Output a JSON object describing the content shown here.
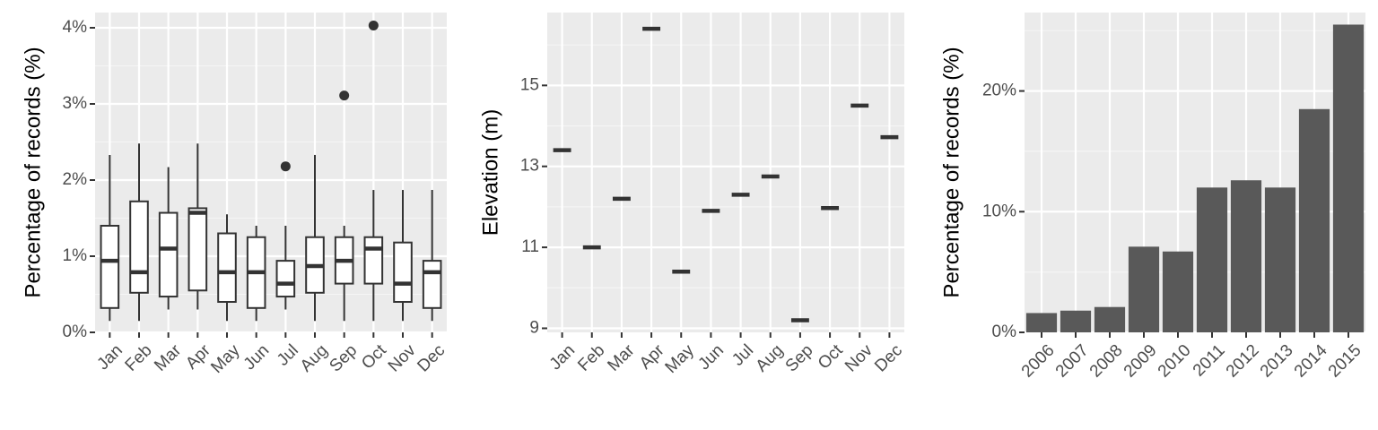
{
  "colors": {
    "panel_bg": "#ebebeb",
    "grid_major": "#ffffff",
    "grid_minor": "#f5f5f5",
    "ink": "#333333",
    "bar_fill": "#595959",
    "box_fill": "#ffffff"
  },
  "chart_data": [
    {
      "type": "box",
      "ylabel": "Percentage of records (%)",
      "xlabel": "",
      "ylim": [
        0,
        4.2
      ],
      "yticks": [
        0,
        1,
        2,
        3,
        4
      ],
      "ytick_labels": [
        "0%",
        "1%",
        "2%",
        "3%",
        "4%"
      ],
      "categories": [
        "Jan",
        "Feb",
        "Mar",
        "Apr",
        "May",
        "Jun",
        "Jul",
        "Aug",
        "Sep",
        "Oct",
        "Nov",
        "Dec"
      ],
      "boxes": [
        {
          "min": 0.15,
          "q1": 0.32,
          "median": 0.94,
          "q3": 1.4,
          "max": 2.33,
          "outliers": []
        },
        {
          "min": 0.15,
          "q1": 0.52,
          "median": 0.79,
          "q3": 1.72,
          "max": 2.48,
          "outliers": []
        },
        {
          "min": 0.3,
          "q1": 0.47,
          "median": 1.1,
          "q3": 1.57,
          "max": 2.17,
          "outliers": []
        },
        {
          "min": 0.3,
          "q1": 0.55,
          "median": 1.57,
          "q3": 1.63,
          "max": 2.48,
          "outliers": []
        },
        {
          "min": 0.15,
          "q1": 0.4,
          "median": 0.79,
          "q3": 1.3,
          "max": 1.55,
          "outliers": []
        },
        {
          "min": 0.15,
          "q1": 0.32,
          "median": 0.79,
          "q3": 1.25,
          "max": 1.4,
          "outliers": []
        },
        {
          "min": 0.3,
          "q1": 0.47,
          "median": 0.64,
          "q3": 0.94,
          "max": 1.4,
          "outliers": [
            2.18
          ]
        },
        {
          "min": 0.15,
          "q1": 0.52,
          "median": 0.87,
          "q3": 1.25,
          "max": 2.33,
          "outliers": []
        },
        {
          "min": 0.15,
          "q1": 0.64,
          "median": 0.94,
          "q3": 1.25,
          "max": 1.4,
          "outliers": [
            3.11
          ]
        },
        {
          "min": 0.15,
          "q1": 0.64,
          "median": 1.1,
          "q3": 1.25,
          "max": 1.87,
          "outliers": [
            4.03
          ]
        },
        {
          "min": 0.15,
          "q1": 0.4,
          "median": 0.64,
          "q3": 1.18,
          "max": 1.87,
          "outliers": []
        },
        {
          "min": 0.15,
          "q1": 0.32,
          "median": 0.79,
          "q3": 0.94,
          "max": 1.87,
          "outliers": []
        }
      ]
    },
    {
      "type": "box",
      "ylabel": "Elevation (m)",
      "xlabel": "",
      "ylim": [
        8.9,
        16.8
      ],
      "yticks": [
        9,
        11,
        13,
        15
      ],
      "ytick_labels": [
        "9",
        "11",
        "13",
        "15"
      ],
      "categories": [
        "Jan",
        "Feb",
        "Mar",
        "Apr",
        "May",
        "Jun",
        "Jul",
        "Aug",
        "Sep",
        "Oct",
        "Nov",
        "Dec"
      ],
      "values": [
        13.4,
        11.0,
        12.2,
        16.4,
        10.4,
        11.9,
        12.3,
        12.75,
        9.2,
        11.97,
        14.5,
        13.72
      ]
    },
    {
      "type": "bar",
      "ylabel": "Percentage of records (%)",
      "xlabel": "",
      "ylim": [
        0,
        26.5
      ],
      "yticks": [
        0,
        10,
        20
      ],
      "ytick_labels": [
        "0%",
        "10%",
        "20%"
      ],
      "categories": [
        "2006",
        "2007",
        "2008",
        "2009",
        "2010",
        "2011",
        "2012",
        "2013",
        "2014",
        "2015"
      ],
      "values": [
        1.6,
        1.8,
        2.1,
        7.1,
        6.7,
        12.0,
        12.6,
        12.0,
        18.5,
        25.5
      ]
    }
  ]
}
